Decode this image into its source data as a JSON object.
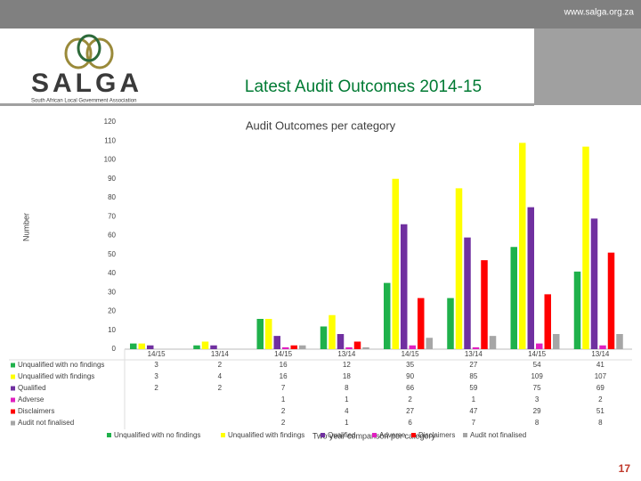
{
  "header": {
    "url": "www.salga.org.za",
    "logo_text": "SALGA",
    "logo_subtitle": "South African Local Government Association",
    "slide_title": "Latest Audit Outcomes 2014-15"
  },
  "page_number": "17",
  "chart_data": {
    "type": "bar",
    "title": "Audit Outcomes per category",
    "y_label": "Number",
    "x_label": "Two year comparison per category",
    "categories": [
      "14/15",
      "13/14",
      "14/15",
      "13/14",
      "14/15",
      "13/14",
      "14/15",
      "13/14"
    ],
    "series": [
      {
        "name": "Unqualified with no findings",
        "color": "#1fb14b",
        "values": [
          3,
          2,
          16,
          12,
          35,
          27,
          54,
          41
        ]
      },
      {
        "name": "Unqualified with findings",
        "color": "#ffff00",
        "values": [
          3,
          4,
          16,
          18,
          90,
          85,
          109,
          107
        ]
      },
      {
        "name": "Qualified",
        "color": "#7030a0",
        "values": [
          2,
          2,
          7,
          8,
          66,
          59,
          75,
          69
        ]
      },
      {
        "name": "Adverse",
        "color": "#e020c0",
        "values": [
          null,
          null,
          1,
          1,
          2,
          1,
          3,
          2
        ]
      },
      {
        "name": "Disclaimers",
        "color": "#ff0000",
        "values": [
          null,
          null,
          2,
          4,
          27,
          47,
          29,
          51
        ]
      },
      {
        "name": "Audit not finalised",
        "color": "#a6a6a6",
        "values": [
          null,
          null,
          2,
          1,
          6,
          7,
          8,
          8
        ]
      }
    ],
    "ylim": [
      0,
      120
    ],
    "yticks": [
      0,
      10,
      20,
      30,
      40,
      50,
      60,
      70,
      80,
      90,
      100,
      110,
      120
    ],
    "grid": false,
    "legend": "bottom"
  }
}
